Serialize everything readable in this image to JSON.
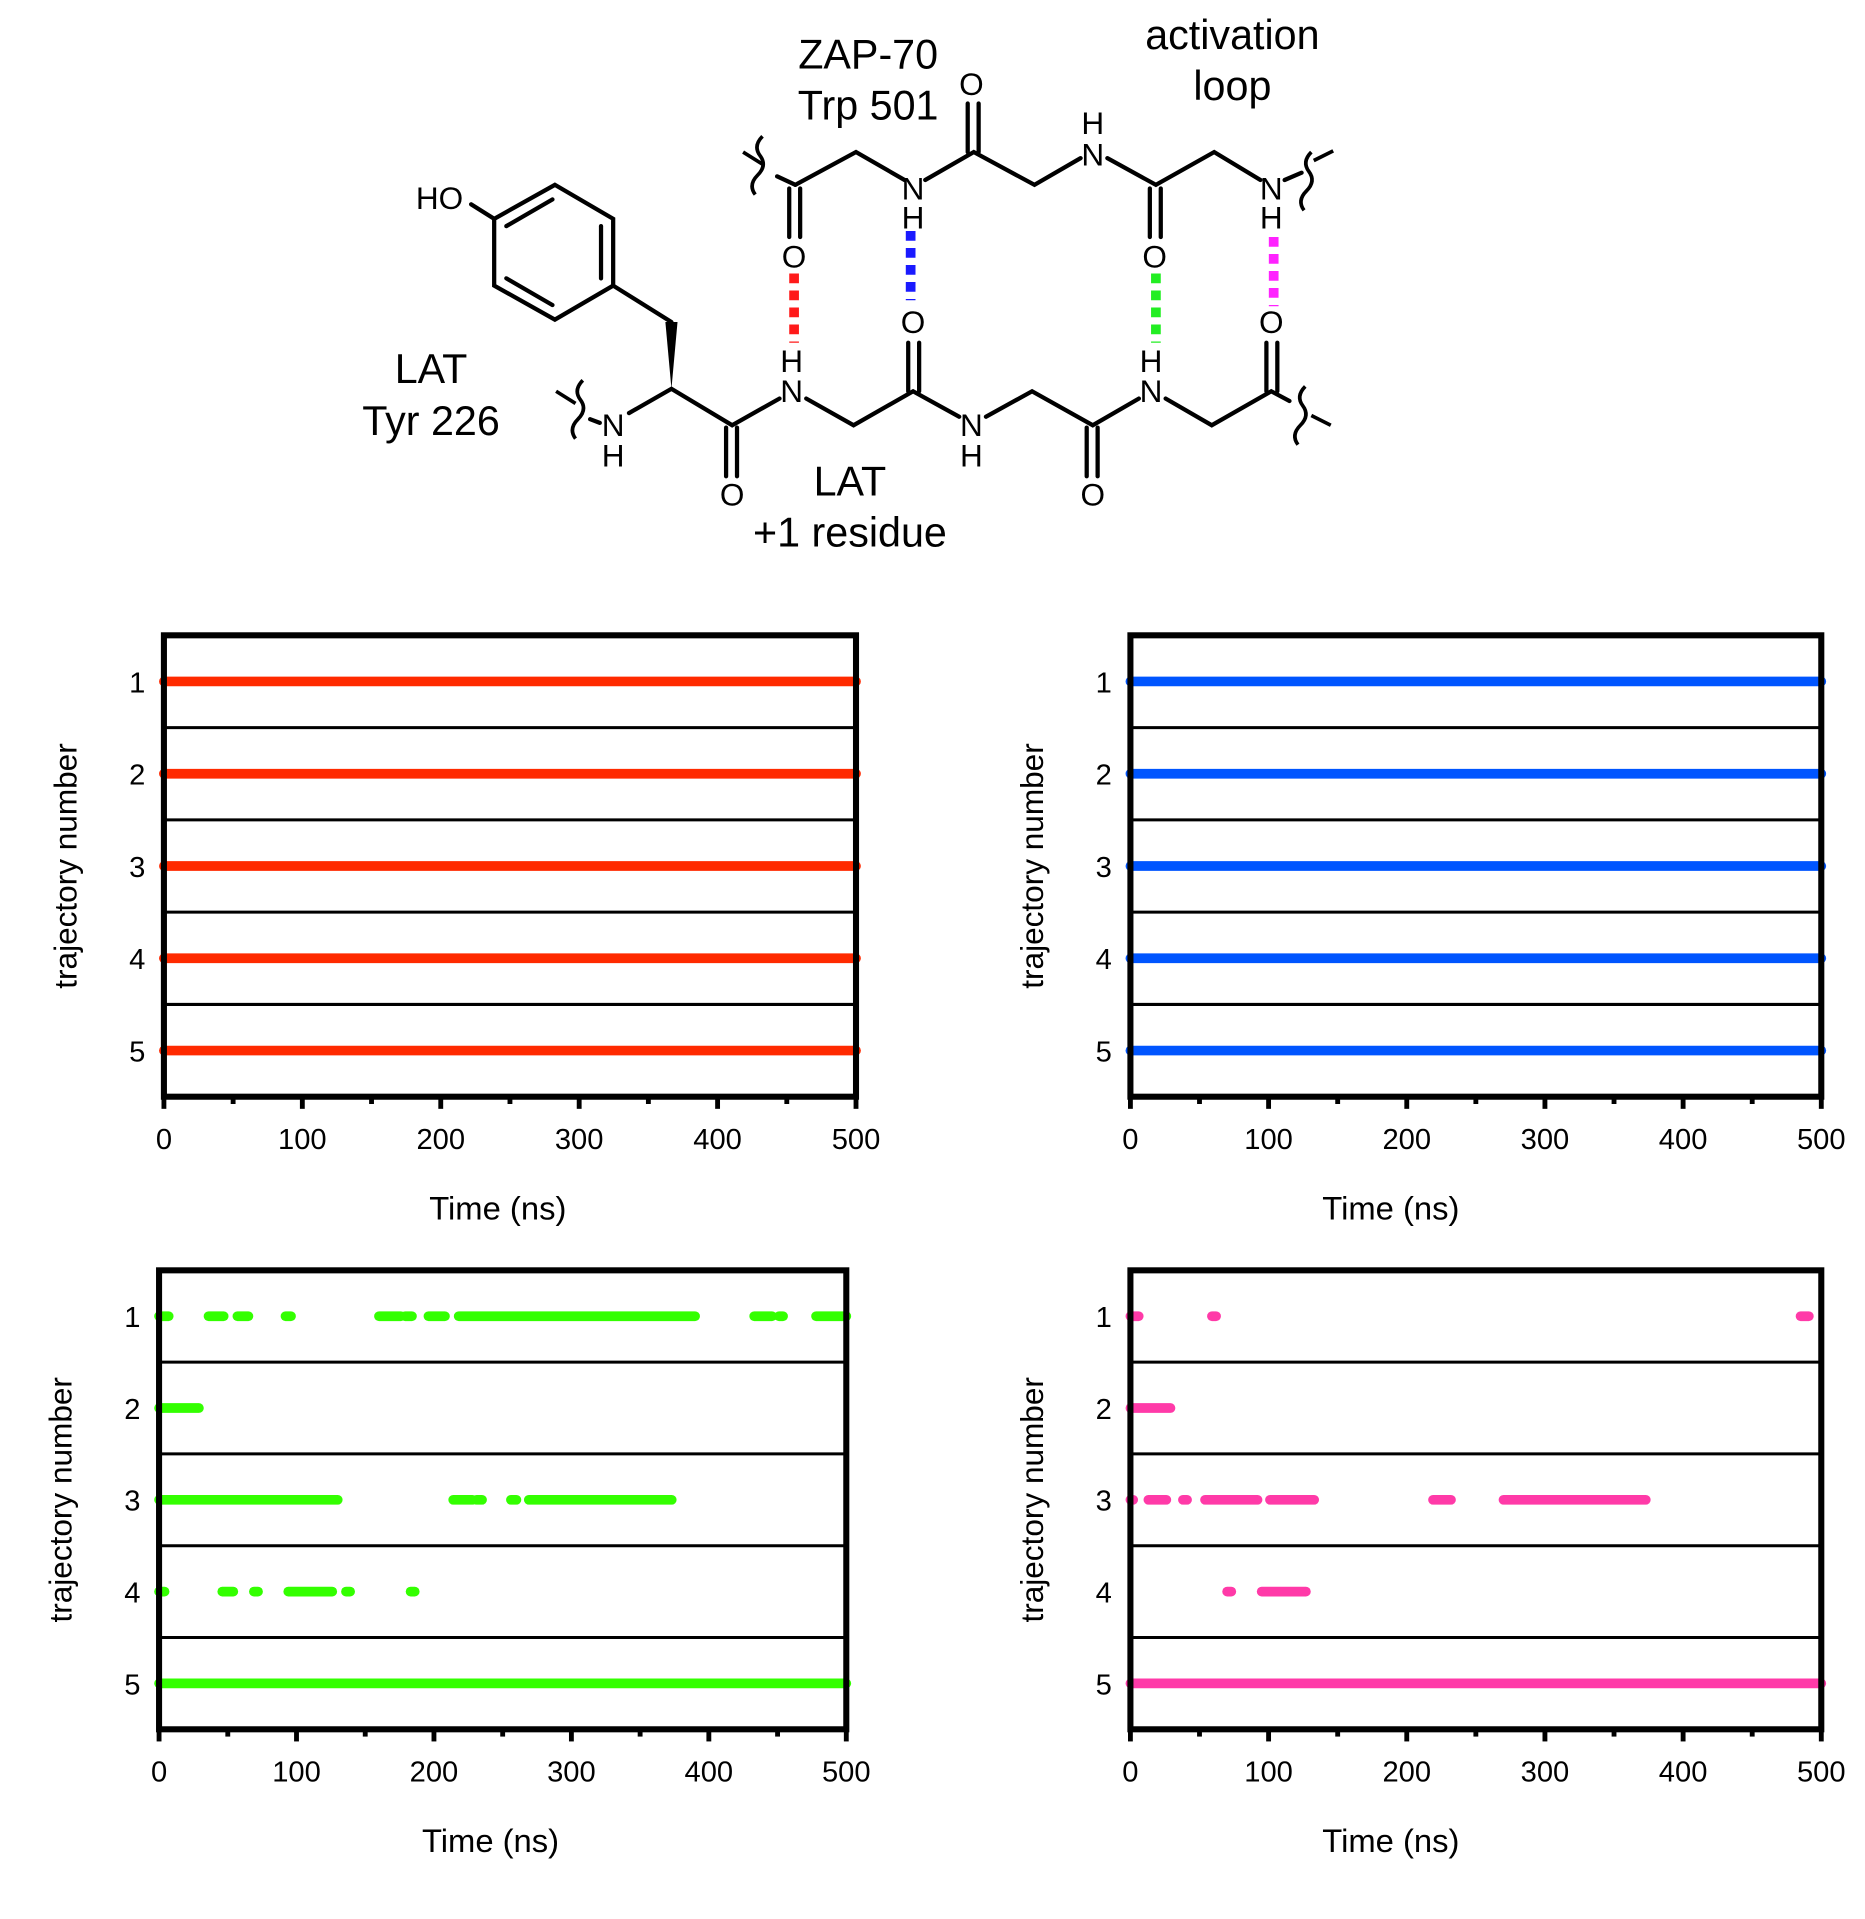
{
  "structure": {
    "labels": {
      "zap70": "ZAP-70",
      "trp501": "Trp 501",
      "activation": "activation",
      "loop": "loop",
      "lat_left": "LAT",
      "tyr226": "Tyr 226",
      "lat_bottom": "LAT",
      "plus1": "+1 residue"
    },
    "atoms": {
      "O": "O",
      "N": "N",
      "H": "H",
      "HO": "HO"
    },
    "hbond_colors": {
      "red": "#ff1a1a",
      "blue": "#1a1aff",
      "green": "#22ee22",
      "magenta": "#ff22ff"
    }
  },
  "chart_data": [
    {
      "type": "scatter",
      "xlabel": "Time (ns)",
      "ylabel": "trajectory number",
      "xlim": [
        0,
        500
      ],
      "xticks": [
        "0",
        "100",
        "200",
        "300",
        "400",
        "500"
      ],
      "yticks": [
        "1",
        "2",
        "3",
        "4",
        "5"
      ],
      "color": "#ff2a00",
      "trajectories": [
        {
          "id": "1",
          "segments": [
            [
              0,
              500
            ]
          ]
        },
        {
          "id": "2",
          "segments": [
            [
              0,
              500
            ]
          ]
        },
        {
          "id": "3",
          "segments": [
            [
              0,
              500
            ]
          ]
        },
        {
          "id": "4",
          "segments": [
            [
              0,
              500
            ]
          ]
        },
        {
          "id": "5",
          "segments": [
            [
              0,
              500
            ]
          ]
        }
      ]
    },
    {
      "type": "scatter",
      "xlabel": "Time (ns)",
      "ylabel": "trajectory number",
      "xlim": [
        0,
        500
      ],
      "xticks": [
        "0",
        "100",
        "200",
        "300",
        "400",
        "500"
      ],
      "yticks": [
        "1",
        "2",
        "3",
        "4",
        "5"
      ],
      "color": "#0055ff",
      "trajectories": [
        {
          "id": "1",
          "segments": [
            [
              0,
              500
            ]
          ]
        },
        {
          "id": "2",
          "segments": [
            [
              0,
              500
            ]
          ]
        },
        {
          "id": "3",
          "segments": [
            [
              0,
              500
            ]
          ]
        },
        {
          "id": "4",
          "segments": [
            [
              0,
              500
            ]
          ]
        },
        {
          "id": "5",
          "segments": [
            [
              0,
              500
            ]
          ]
        }
      ]
    },
    {
      "type": "scatter",
      "xlabel": "Time (ns)",
      "ylabel": "trajectory number",
      "xlim": [
        0,
        500
      ],
      "xticks": [
        "0",
        "100",
        "200",
        "300",
        "400",
        "500"
      ],
      "yticks": [
        "1",
        "2",
        "3",
        "4",
        "5"
      ],
      "color": "#33ff00",
      "trajectories": [
        {
          "id": "1",
          "segments": [
            [
              0,
              7
            ],
            [
              36,
              47
            ],
            [
              57,
              65
            ],
            [
              92,
              96
            ],
            [
              160,
              176
            ],
            [
              179,
              184
            ],
            [
              196,
              208
            ],
            [
              218,
              390
            ],
            [
              433,
              446
            ],
            [
              451,
              454
            ],
            [
              478,
              500
            ]
          ]
        },
        {
          "id": "2",
          "segments": [
            [
              0,
              29
            ]
          ]
        },
        {
          "id": "3",
          "segments": [
            [
              0,
              130
            ],
            [
              214,
              228
            ],
            [
              231,
              235
            ],
            [
              256,
              260
            ],
            [
              269,
              373
            ]
          ]
        },
        {
          "id": "4",
          "segments": [
            [
              0,
              4
            ],
            [
              46,
              54
            ],
            [
              69,
              72
            ],
            [
              94,
              126
            ],
            [
              136,
              139
            ],
            [
              183,
              186
            ]
          ]
        },
        {
          "id": "5",
          "segments": [
            [
              0,
              500
            ]
          ]
        }
      ]
    },
    {
      "type": "scatter",
      "xlabel": "Time (ns)",
      "ylabel": "trajectory number",
      "xlim": [
        0,
        500
      ],
      "xticks": [
        "0",
        "100",
        "200",
        "300",
        "400",
        "500"
      ],
      "yticks": [
        "1",
        "2",
        "3",
        "4",
        "5"
      ],
      "color": "#ff3aa8",
      "trajectories": [
        {
          "id": "1",
          "segments": [
            [
              0,
              6
            ],
            [
              59,
              62
            ],
            [
              485,
              491
            ]
          ]
        },
        {
          "id": "2",
          "segments": [
            [
              0,
              29
            ]
          ]
        },
        {
          "id": "3",
          "segments": [
            [
              0,
              2
            ],
            [
              13,
              26
            ],
            [
              38,
              41
            ],
            [
              54,
              92
            ],
            [
              101,
              133
            ],
            [
              219,
              232
            ],
            [
              270,
              373
            ]
          ]
        },
        {
          "id": "4",
          "segments": [
            [
              70,
              73
            ],
            [
              95,
              127
            ]
          ]
        },
        {
          "id": "5",
          "segments": [
            [
              0,
              500
            ]
          ]
        }
      ]
    }
  ]
}
